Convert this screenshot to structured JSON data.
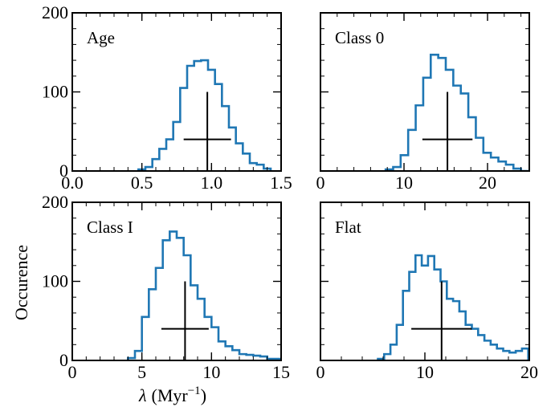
{
  "figure": {
    "xlabel_symbol": "λ",
    "xlabel_unit": "(Myr",
    "xlabel_exp": "−1",
    "xlabel_close": ")",
    "ylabel": "Occurence",
    "hist_color": "#1f77b4",
    "marker_color": "#000000"
  },
  "chart_data": [
    {
      "type": "histogram-step",
      "panel_label": "Age",
      "xlim": [
        0,
        1.5
      ],
      "ylim": [
        0,
        200
      ],
      "xticks": [
        0.0,
        0.5,
        1.0,
        1.5
      ],
      "xtick_labels": [
        "0.0",
        "0.5",
        "1.0",
        "1.5"
      ],
      "yticks": [
        0,
        100,
        200
      ],
      "ytick_labels": [
        "0",
        "100",
        "200"
      ],
      "edges": [
        0.475,
        0.525,
        0.575,
        0.625,
        0.675,
        0.725,
        0.775,
        0.825,
        0.875,
        0.925,
        0.975,
        1.025,
        1.075,
        1.125,
        1.175,
        1.225,
        1.275,
        1.325,
        1.375,
        1.425
      ],
      "counts": [
        2,
        5,
        15,
        28,
        40,
        62,
        105,
        133,
        139,
        140,
        128,
        110,
        82,
        55,
        35,
        22,
        10,
        8,
        3
      ],
      "marker": {
        "x": 0.97,
        "y": 40,
        "x_err": 0.17,
        "y_min": 0,
        "y_max": 100
      }
    },
    {
      "type": "histogram-step",
      "panel_label": "Class 0",
      "xlim": [
        0,
        25
      ],
      "ylim": [
        0,
        200
      ],
      "xticks": [
        0,
        10,
        20
      ],
      "xtick_labels": [
        "0",
        "10",
        "20"
      ],
      "yticks": [
        0,
        100,
        200
      ],
      "ytick_labels": [
        "",
        "",
        ""
      ],
      "edges": [
        7.8,
        8.7,
        9.6,
        10.5,
        11.4,
        12.3,
        13.2,
        14.1,
        15.0,
        15.9,
        16.8,
        17.7,
        18.6,
        19.5,
        20.4,
        21.3,
        22.2,
        23.1,
        24.0,
        24.9
      ],
      "counts": [
        2,
        5,
        20,
        52,
        83,
        118,
        147,
        143,
        128,
        108,
        98,
        68,
        42,
        23,
        17,
        12,
        8,
        3,
        0
      ],
      "marker": {
        "x": 15.2,
        "y": 40,
        "x_err": 3.0,
        "y_min": 0,
        "y_max": 100
      }
    },
    {
      "type": "histogram-step",
      "panel_label": "Class I",
      "xlim": [
        0,
        15
      ],
      "ylim": [
        0,
        200
      ],
      "xticks": [
        0,
        5,
        10,
        15
      ],
      "xtick_labels": [
        "0",
        "5",
        "10",
        "15"
      ],
      "yticks": [
        0,
        100,
        200
      ],
      "ytick_labels": [
        "0",
        "100",
        "200"
      ],
      "edges": [
        4.0,
        4.5,
        5.0,
        5.5,
        6.0,
        6.5,
        7.0,
        7.5,
        8.0,
        8.5,
        9.0,
        9.5,
        10.0,
        10.5,
        11.0,
        11.5,
        12.0,
        12.5,
        13.0,
        13.5,
        14.0,
        14.5,
        15.0
      ],
      "counts": [
        3,
        12,
        55,
        90,
        117,
        152,
        163,
        155,
        133,
        95,
        78,
        55,
        42,
        24,
        18,
        13,
        8,
        7,
        6,
        5,
        2,
        2
      ],
      "marker": {
        "x": 8.1,
        "y": 40,
        "x_err": 1.7,
        "y_min": 0,
        "y_max": 100
      }
    },
    {
      "type": "histogram-step",
      "panel_label": "Flat",
      "xlim": [
        0,
        20
      ],
      "ylim": [
        0,
        200
      ],
      "xticks": [
        0,
        10,
        20
      ],
      "xtick_labels": [
        "0",
        "10",
        "20"
      ],
      "yticks": [
        0,
        100,
        200
      ],
      "ytick_labels": [
        "",
        "",
        ""
      ],
      "edges": [
        5.5,
        6.1,
        6.7,
        7.3,
        7.9,
        8.5,
        9.1,
        9.7,
        10.3,
        10.9,
        11.5,
        12.1,
        12.7,
        13.3,
        13.9,
        14.5,
        15.1,
        15.7,
        16.3,
        16.9,
        17.5,
        18.1,
        18.7,
        19.3,
        19.9
      ],
      "counts": [
        2,
        8,
        20,
        45,
        88,
        112,
        133,
        120,
        132,
        115,
        100,
        78,
        75,
        62,
        45,
        40,
        32,
        25,
        20,
        15,
        12,
        10,
        12,
        15
      ],
      "marker": {
        "x": 11.6,
        "y": 40,
        "x_err": 2.9,
        "y_min": 0,
        "y_max": 100
      }
    }
  ]
}
